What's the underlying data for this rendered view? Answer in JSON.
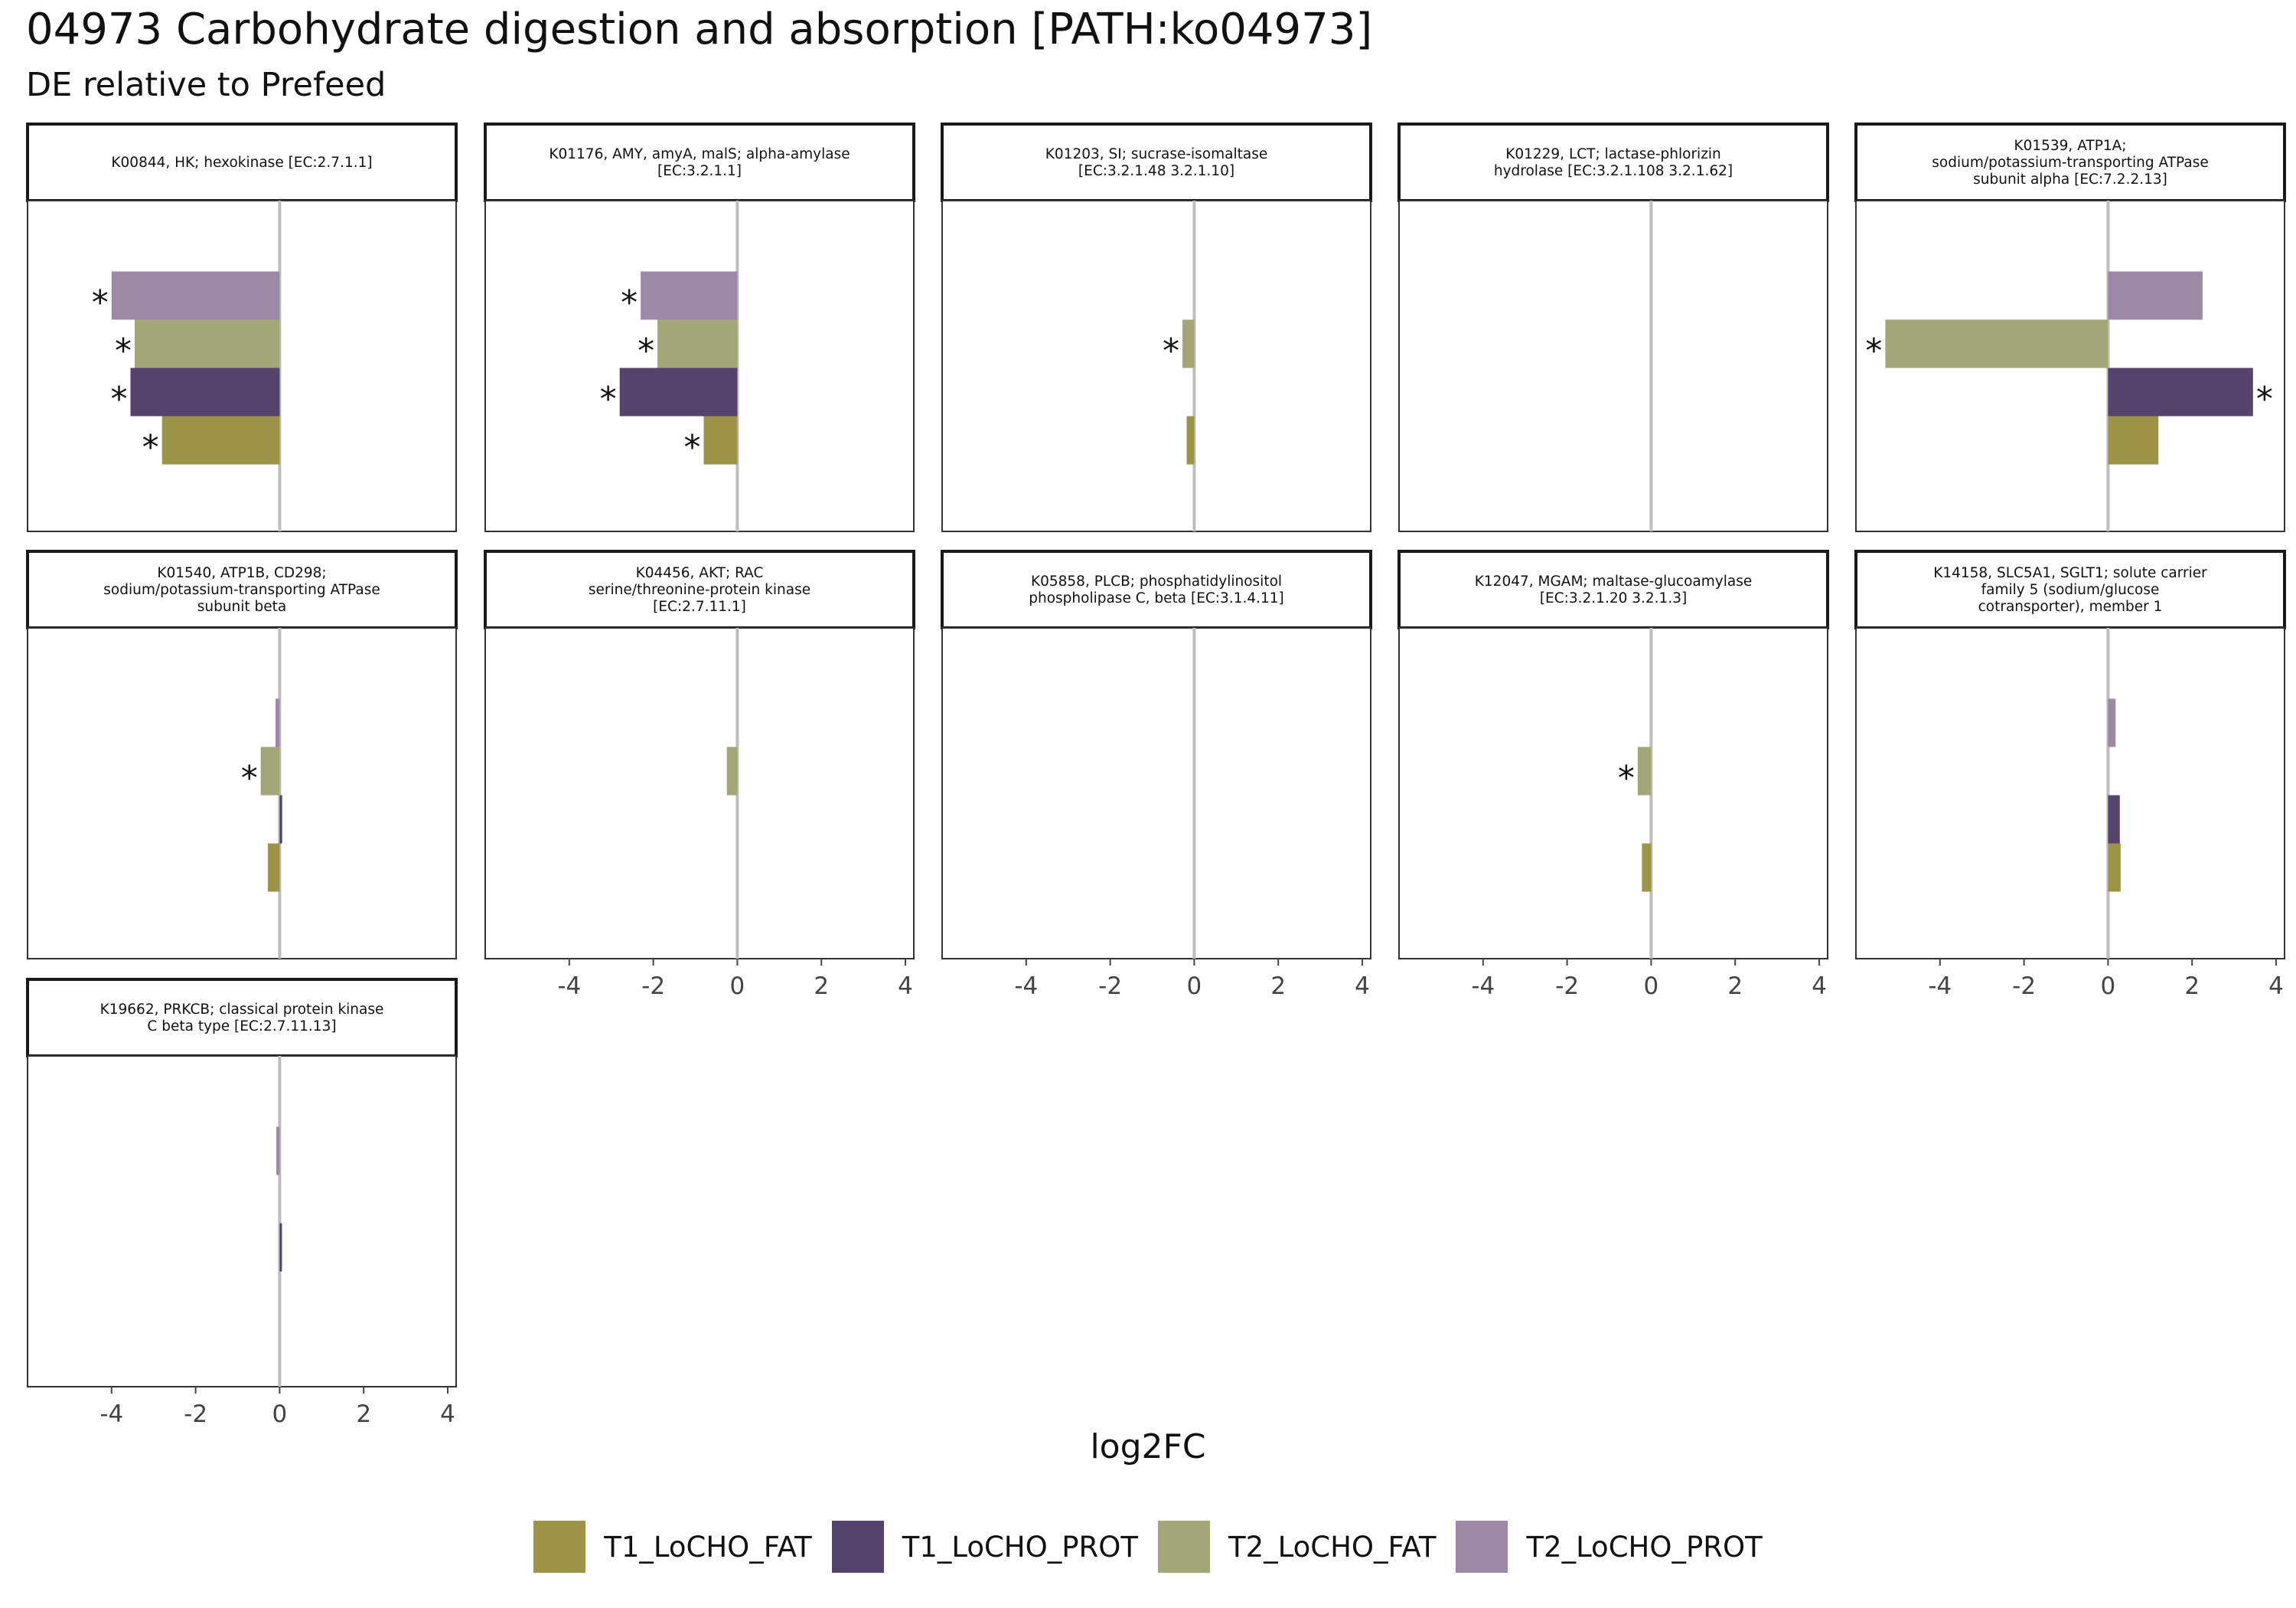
{
  "title": "04973 Carbohydrate digestion and absorption [PATH:ko04973]",
  "subtitle": "DE relative to Prefeed",
  "chart_data": {
    "type": "bar",
    "orientation": "horizontal",
    "xlabel": "log2FC",
    "xlim": [
      -6,
      4.2
    ],
    "xticks": [
      -4,
      -2,
      0,
      2,
      4
    ],
    "xtick_labels": [
      "-4",
      "-2",
      "0",
      "2",
      "4"
    ],
    "grid": false,
    "legend_position": "bottom",
    "series": [
      {
        "name": "T1_LoCHO_FAT",
        "color": "#9c9447"
      },
      {
        "name": "T1_LoCHO_PROT",
        "color": "#53436d"
      },
      {
        "name": "T2_LoCHO_FAT",
        "color": "#a3a676"
      },
      {
        "name": "T2_LoCHO_PROT",
        "color": "#9c89a6"
      }
    ],
    "panels": [
      {
        "title": [
          "K00844, HK; hexokinase [EC:2.7.1.1]"
        ],
        "values": [
          -2.8,
          -3.55,
          -3.45,
          -4.0
        ],
        "significant": [
          true,
          true,
          true,
          true
        ]
      },
      {
        "title": [
          "K01176, AMY, amyA, malS; alpha-amylase",
          "[EC:3.2.1.1]"
        ],
        "values": [
          -0.8,
          -2.8,
          -1.9,
          -2.3
        ],
        "significant": [
          true,
          true,
          true,
          true
        ]
      },
      {
        "title": [
          "K01203, SI; sucrase-isomaltase",
          "[EC:3.2.1.48 3.2.1.10]"
        ],
        "values": [
          -0.18,
          0,
          -0.28,
          0
        ],
        "significant": [
          false,
          false,
          true,
          false
        ]
      },
      {
        "title": [
          "K01229, LCT; lactase-phlorizin",
          "hydrolase [EC:3.2.1.108 3.2.1.62]"
        ],
        "values": [
          0,
          0,
          0,
          0
        ],
        "significant": [
          false,
          false,
          false,
          false
        ]
      },
      {
        "title": [
          "K01539, ATP1A;",
          "sodium/potassium-transporting ATPase",
          "subunit alpha [EC:7.2.2.13]"
        ],
        "values": [
          1.2,
          3.45,
          -5.3,
          2.25
        ],
        "significant": [
          false,
          true,
          true,
          false
        ]
      },
      {
        "title": [
          "K01540, ATP1B, CD298;",
          "sodium/potassium-transporting ATPase",
          "subunit beta"
        ],
        "values": [
          -0.28,
          0.06,
          -0.45,
          -0.1
        ],
        "significant": [
          false,
          false,
          true,
          false
        ]
      },
      {
        "title": [
          "K04456, AKT; RAC",
          "serine/threonine-protein kinase",
          "[EC:2.7.11.1]"
        ],
        "values": [
          0,
          0,
          -0.25,
          0
        ],
        "significant": [
          false,
          false,
          false,
          false
        ]
      },
      {
        "title": [
          "K05858, PLCB; phosphatidylinositol",
          "phospholipase C, beta [EC:3.1.4.11]"
        ],
        "values": [
          0,
          0,
          0,
          0
        ],
        "significant": [
          false,
          false,
          false,
          false
        ]
      },
      {
        "title": [
          "K12047, MGAM; maltase-glucoamylase",
          "[EC:3.2.1.20 3.2.1.3]"
        ],
        "values": [
          -0.22,
          0,
          -0.32,
          0
        ],
        "significant": [
          false,
          false,
          true,
          false
        ]
      },
      {
        "title": [
          "K14158, SLC5A1, SGLT1; solute carrier",
          "family 5 (sodium/glucose",
          "cotransporter), member 1"
        ],
        "values": [
          0.3,
          0.28,
          0,
          0.18
        ],
        "significant": [
          false,
          false,
          false,
          false
        ]
      },
      {
        "title": [
          "K19662, PRKCB; classical protein kinase",
          "C beta type [EC:2.7.11.13]"
        ],
        "values": [
          0,
          0.05,
          0,
          -0.08
        ],
        "significant": [
          false,
          false,
          false,
          false
        ]
      }
    ],
    "significance_marker": "*"
  }
}
